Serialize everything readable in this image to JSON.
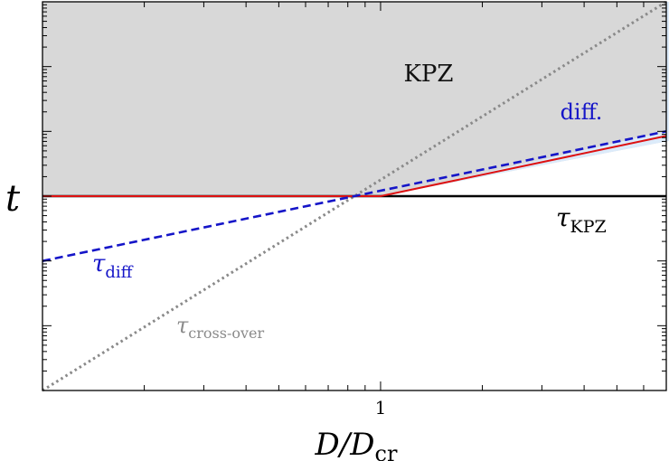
{
  "chart_data": {
    "type": "line",
    "title": "",
    "xlabel": "D/D",
    "xlabel_sub": "cr",
    "ylabel": "t",
    "x_scale": "log",
    "y_scale": "log",
    "xlim": [
      0.1,
      7
    ],
    "ylim": [
      0.001,
      1000.0
    ],
    "x_ticks": [
      {
        "value": 1,
        "label": "1"
      }
    ],
    "grid": false,
    "legend": "none",
    "series": [
      {
        "name": "τ_KPZ",
        "label": "τ",
        "label_sub": "KPZ",
        "style": "solid",
        "color": "#000000",
        "x": [
          0.1,
          7
        ],
        "y": [
          1,
          1
        ]
      },
      {
        "name": "τ_diff",
        "label": "τ",
        "label_sub": "diff",
        "style": "dashed",
        "color": "#1515c8",
        "x": [
          0.1,
          7
        ],
        "y": [
          0.1,
          10
        ]
      },
      {
        "name": "τ_cross-over",
        "label": "τ",
        "label_sub": "cross-over",
        "style": "dotted",
        "color": "#8a8a8a",
        "x": [
          0.1,
          7
        ],
        "y": [
          0.001,
          1000
        ]
      },
      {
        "name": "",
        "style": "solid",
        "color": "#dd1111",
        "x": [
          0.1,
          1,
          7
        ],
        "y": [
          1,
          1,
          8.5
        ]
      }
    ],
    "regions": [
      {
        "label": "KPZ",
        "color": "#d8d8d8"
      },
      {
        "label": "diff.",
        "color": "#dcebfa",
        "label_color": "#1515c8"
      }
    ]
  }
}
